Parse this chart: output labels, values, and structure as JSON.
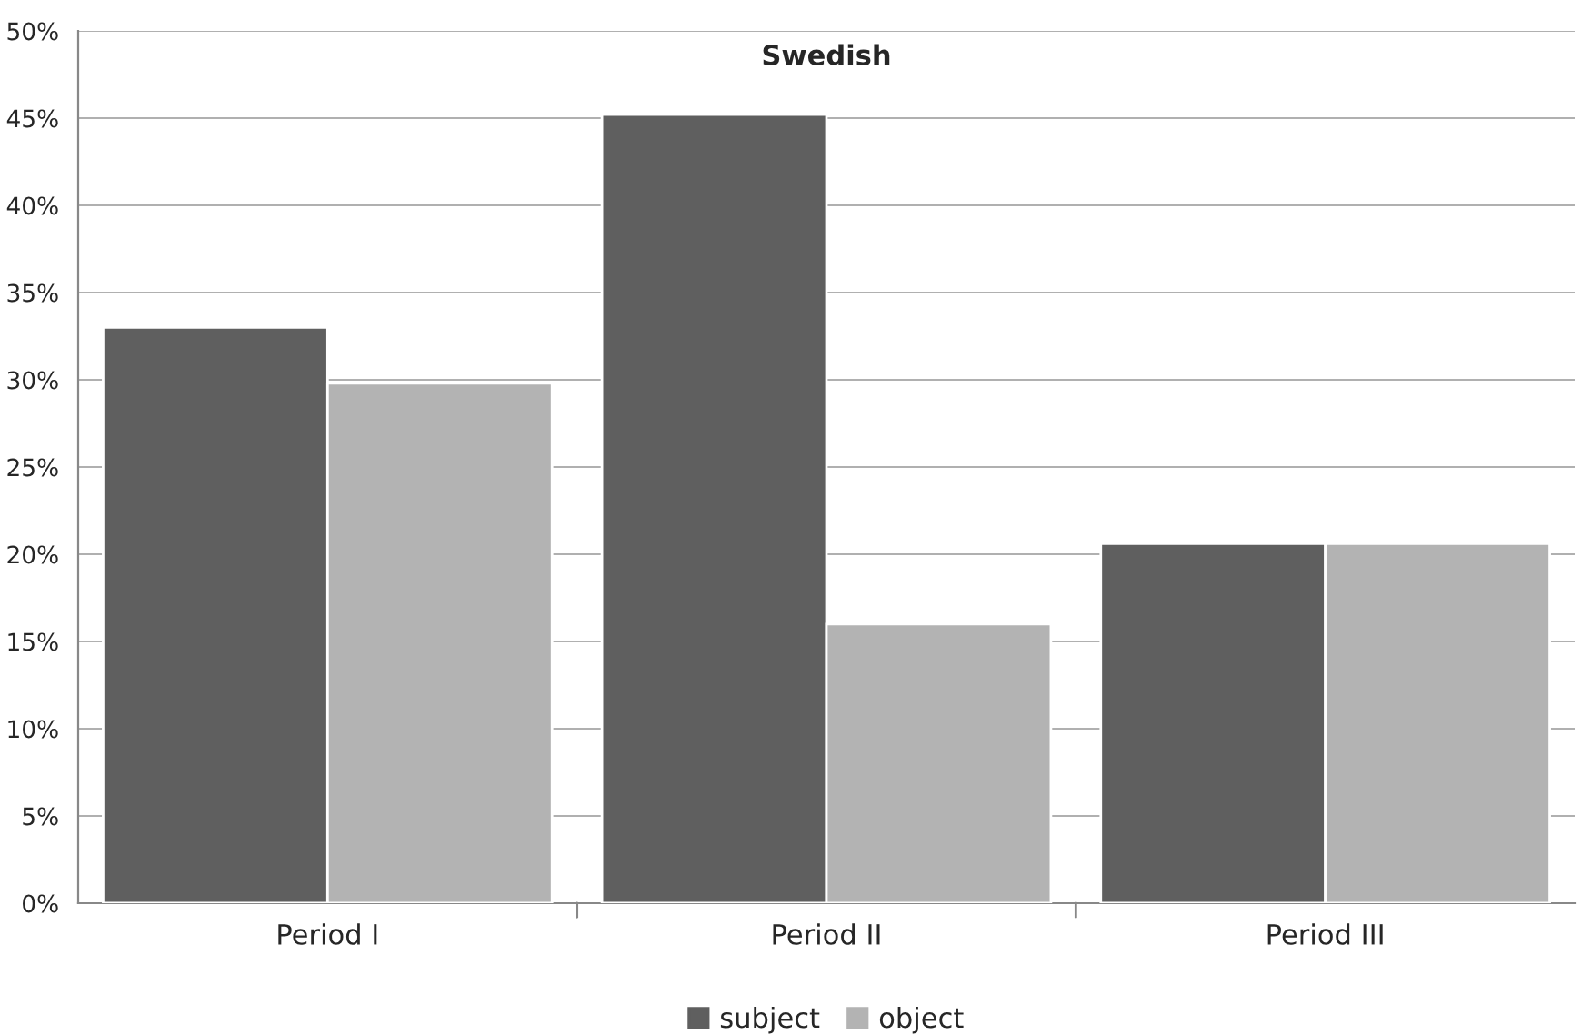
{
  "chart_data": {
    "type": "bar",
    "title": "Swedish",
    "categories": [
      "Period I",
      "Period II",
      "Period III"
    ],
    "series": [
      {
        "name": "subject",
        "color": "#5f5f5f",
        "values": [
          33,
          45.2,
          20.6
        ]
      },
      {
        "name": "object",
        "color": "#b3b3b3",
        "values": [
          29.8,
          16,
          20.6
        ]
      }
    ],
    "ylim": [
      0,
      50
    ],
    "yticks": [
      {
        "value": 0,
        "label": "0%"
      },
      {
        "value": 5,
        "label": "5%"
      },
      {
        "value": 10,
        "label": "10%"
      },
      {
        "value": 15,
        "label": "15%"
      },
      {
        "value": 20,
        "label": "20%"
      },
      {
        "value": 25,
        "label": "25%"
      },
      {
        "value": 30,
        "label": "30%"
      },
      {
        "value": 35,
        "label": "35%"
      },
      {
        "value": 40,
        "label": "40%"
      },
      {
        "value": 45,
        "label": "45%"
      },
      {
        "value": 50,
        "label": "50%"
      }
    ],
    "grid": "y",
    "legend": "bottom"
  }
}
